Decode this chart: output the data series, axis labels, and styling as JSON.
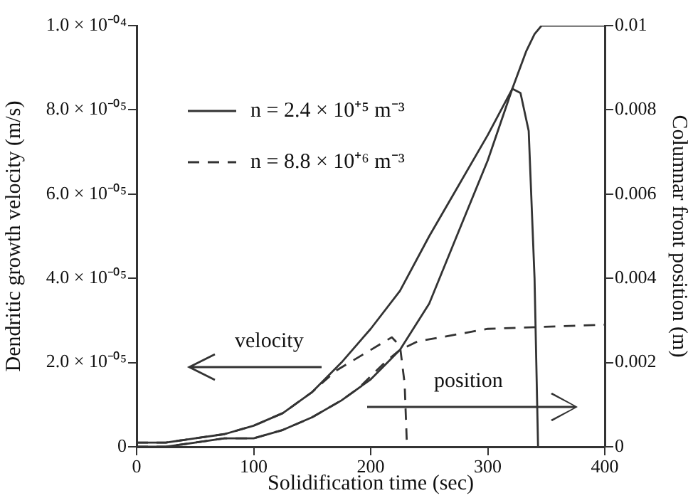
{
  "chart_data": {
    "type": "line",
    "xlabel": "Solidification time (sec)",
    "ylabel": "Dendritic growth velocity (m/s)",
    "y2label": "Columnar front position (m)",
    "xlim": [
      0,
      400
    ],
    "xticks": [
      0,
      100,
      200,
      300,
      400
    ],
    "ylim": [
      0,
      0.0001
    ],
    "yticks": [
      0,
      {
        "value": 2e-05,
        "label": "2.0 × 10⁻⁰⁵"
      },
      {
        "value": 4e-05,
        "label": "4.0 × 10⁻⁰⁵"
      },
      {
        "value": 6e-05,
        "label": "6.0 × 10⁻⁰⁵"
      },
      {
        "value": 8e-05,
        "label": "8.0 × 10⁻⁰⁵"
      },
      {
        "value": 0.0001,
        "label": "1.0 × 10⁻⁰⁴"
      }
    ],
    "y2lim": [
      0,
      0.01
    ],
    "y2ticks": [
      0,
      0.002,
      0.004,
      0.006,
      0.008,
      0.01
    ],
    "grid": false,
    "legend": "top left",
    "marker": "none",
    "annotations": [
      "velocity",
      "position"
    ],
    "series": [
      {
        "name": "n = 2.4 × 10⁺⁵ m⁻³",
        "color": "#333333",
        "line_style": "solid",
        "x": [
          0,
          25,
          50,
          75,
          100,
          125,
          150,
          175,
          200,
          225,
          250,
          275,
          300,
          321,
          328,
          335,
          340,
          343
        ],
        "values": [
          1e-06,
          1e-06,
          2e-06,
          3e-06,
          5e-06,
          8e-06,
          1.3e-05,
          2e-05,
          2.8e-05,
          3.7e-05,
          5e-05,
          6.2e-05,
          7.4e-05,
          8.5e-05,
          8.4e-05,
          7.5e-05,
          4e-05,
          0
        ]
      },
      {
        "name": "n = 8.8 × 10⁺⁶ m⁻³",
        "color": "#333333",
        "line_style": "dashed",
        "x": [
          0,
          25,
          50,
          75,
          100,
          125,
          150,
          170,
          200,
          218,
          225,
          229,
          231
        ],
        "values": [
          1e-06,
          1e-06,
          2e-06,
          3e-06,
          5e-06,
          8e-06,
          1.3e-05,
          1.8e-05,
          2.3e-05,
          2.6e-05,
          2.4e-05,
          1.5e-05,
          0
        ]
      },
      {
        "color": "#333333",
        "line_style": "solid",
        "axis": "y2",
        "x": [
          0,
          25,
          50,
          75,
          100,
          125,
          150,
          175,
          200,
          225,
          250,
          272,
          300,
          321,
          333,
          340,
          346,
          400
        ],
        "values": [
          0,
          0,
          0.0001,
          0.0002,
          0.0002,
          0.0004,
          0.0007,
          0.0011,
          0.0016,
          0.0023,
          0.0034,
          0.0049,
          0.0068,
          0.0085,
          0.0094,
          0.0098,
          0.01,
          0.01
        ]
      },
      {
        "color": "#333333",
        "line_style": "dashed",
        "axis": "y2",
        "x": [
          0,
          25,
          50,
          75,
          100,
          125,
          150,
          175,
          190,
          212,
          225,
          240,
          260,
          300,
          400
        ],
        "values": [
          0,
          0,
          0.0001,
          0.0002,
          0.0002,
          0.0004,
          0.0007,
          0.0011,
          0.0014,
          0.002,
          0.0023,
          0.0025,
          0.0026,
          0.0028,
          0.0029
        ]
      }
    ]
  }
}
